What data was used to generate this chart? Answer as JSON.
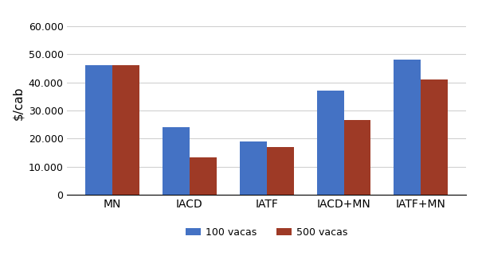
{
  "categories": [
    "MN",
    "IACD",
    "IATF",
    "IACD+MN",
    "IATF+MN"
  ],
  "series": [
    {
      "label": "100 vacas",
      "color": "#4472C4",
      "values": [
        46000,
        24000,
        19000,
        37000,
        48000
      ]
    },
    {
      "label": "500 vacas",
      "color": "#9E3A26",
      "values": [
        46000,
        13500,
        17000,
        26500,
        41000
      ]
    }
  ],
  "ylabel": "$/cab",
  "ylim": [
    0,
    65000
  ],
  "yticks": [
    0,
    10000,
    20000,
    30000,
    40000,
    50000,
    60000
  ],
  "ytick_labels": [
    "0",
    "10.000",
    "20.000",
    "30.000",
    "40.000",
    "50.000",
    "60.000"
  ],
  "bar_width": 0.35,
  "background_color": "#ffffff",
  "grid_color": "#d0d0d0"
}
